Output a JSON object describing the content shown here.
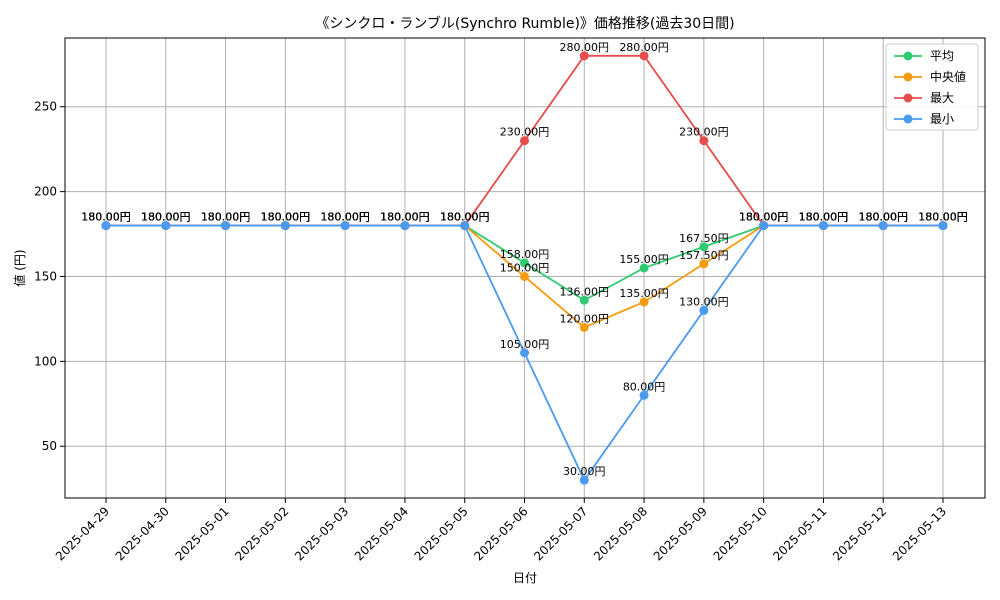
{
  "chart_data": {
    "type": "line",
    "title": "《シンクロ・ランブル(Synchro Rumble)》価格推移(過去30日間)",
    "xlabel": "日付",
    "ylabel": "値 (円)",
    "ylim": [
      19.5,
      290.5
    ],
    "yticks": [
      50,
      100,
      150,
      200,
      250
    ],
    "grid": true,
    "legend_position": "top-right",
    "label_suffix": "円",
    "categories": [
      "2025-04-29",
      "2025-04-30",
      "2025-05-01",
      "2025-05-02",
      "2025-05-03",
      "2025-05-04",
      "2025-05-05",
      "2025-05-06",
      "2025-05-07",
      "2025-05-08",
      "2025-05-09",
      "2025-05-10",
      "2025-05-11",
      "2025-05-12",
      "2025-05-13"
    ],
    "series": [
      {
        "name": "平均",
        "color": "#2ecc71",
        "values": [
          180,
          180,
          180,
          180,
          180,
          180,
          180,
          158,
          136,
          155,
          167.5,
          180,
          180,
          180,
          180
        ]
      },
      {
        "name": "中央値",
        "color": "#f39c12",
        "values": [
          180,
          180,
          180,
          180,
          180,
          180,
          180,
          150,
          120,
          135,
          157.5,
          180,
          180,
          180,
          180
        ]
      },
      {
        "name": "最大",
        "color": "#e74c4c",
        "values": [
          180,
          180,
          180,
          180,
          180,
          180,
          180,
          230,
          280,
          280,
          230,
          180,
          180,
          180,
          180
        ]
      },
      {
        "name": "最小",
        "color": "#4a9bef",
        "values": [
          180,
          180,
          180,
          180,
          180,
          180,
          180,
          105,
          30,
          80,
          130,
          180,
          180,
          180,
          180
        ]
      }
    ]
  }
}
